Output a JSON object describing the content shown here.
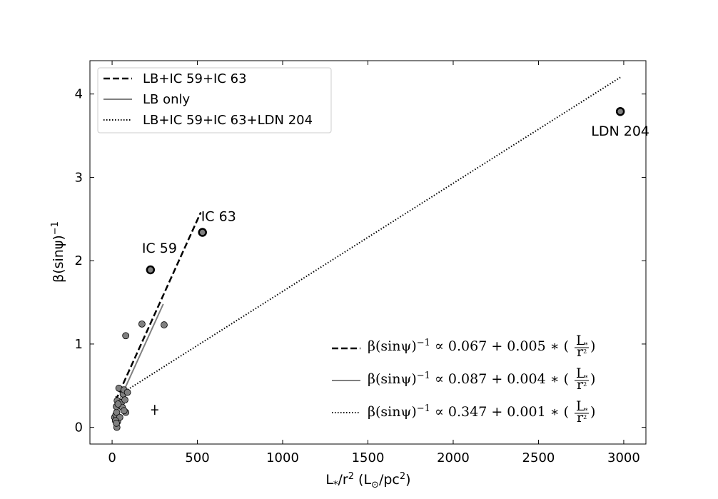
{
  "chart_data": {
    "type": "scatter",
    "xlabel_main": "L",
    "xlabel_sub": "*",
    "xlabel_mid": "/r",
    "xlabel_sup": "2",
    "xlabel_unit_open": " (L",
    "xlabel_unit_sym": "⊙",
    "xlabel_unit_mid": "/pc",
    "xlabel_unit_sup": "2",
    "xlabel_unit_close": ")",
    "ylabel_main": "β(sinψ)",
    "ylabel_sup": "−1",
    "xlim": [
      -130,
      3130
    ],
    "ylim": [
      -0.2,
      4.4
    ],
    "xticks": [
      0,
      500,
      1000,
      1500,
      2000,
      2500,
      3000
    ],
    "yticks": [
      0,
      1,
      2,
      3,
      4
    ],
    "grid": false,
    "legend_position": "top-left",
    "legend": [
      {
        "label": "LB+IC 59+IC 63",
        "style": "dashed"
      },
      {
        "label": "LB only",
        "style": "solid"
      },
      {
        "label": "LB+IC 59+IC 63+LDN 204",
        "style": "dotted"
      }
    ],
    "points_lb": {
      "name": "LB",
      "x": [
        28,
        32,
        15,
        22,
        27,
        25,
        30,
        40,
        45,
        55,
        60,
        65,
        70,
        75,
        80,
        90,
        35,
        20,
        25,
        70,
        80,
        175,
        305
      ],
      "y": [
        0.0,
        0.07,
        0.12,
        0.15,
        0.18,
        0.25,
        0.32,
        0.47,
        0.12,
        0.3,
        0.24,
        0.4,
        0.45,
        0.33,
        0.18,
        0.42,
        0.28,
        0.08,
        0.05,
        0.2,
        1.1,
        1.24,
        1.23
      ]
    },
    "points_clouds": [
      {
        "name": "IC 59",
        "x": 225,
        "y": 1.89
      },
      {
        "name": "IC 63",
        "x": 530,
        "y": 2.34
      },
      {
        "name": "LDN 204",
        "x": 2980,
        "y": 3.79
      }
    ],
    "annotations": [
      "IC 59",
      "IC 63",
      "LDN 204"
    ],
    "error_bar": {
      "x": 250,
      "y": 0.21
    },
    "fits": [
      {
        "style": "dashed",
        "x": [
          20,
          520
        ],
        "y": [
          0.32,
          2.58
        ]
      },
      {
        "style": "solid",
        "x": [
          20,
          300
        ],
        "y": [
          0.22,
          1.48
        ]
      },
      {
        "style": "dotted",
        "x": [
          20,
          2980
        ],
        "y": [
          0.36,
          4.2
        ]
      }
    ],
    "equations": [
      {
        "style": "dashed",
        "lhs": "β(sinψ)",
        "exp": "−1",
        "rhs": " ∝ 0.067 + 0.005 ∗ ("
      },
      {
        "style": "solid",
        "lhs": "β(sinψ)",
        "exp": "−1",
        "rhs": " ∝ 0.087 + 0.004 ∗ ("
      },
      {
        "style": "dotted",
        "lhs": "β(sinψ)",
        "exp": "−1",
        "rhs": " ∝ 0.347 + 0.001 ∗ ("
      }
    ],
    "equation_frac_num": "L",
    "equation_frac_num_sub": "*",
    "equation_frac_den": "r",
    "equation_frac_den_sup": "2",
    "equation_close": ")"
  }
}
